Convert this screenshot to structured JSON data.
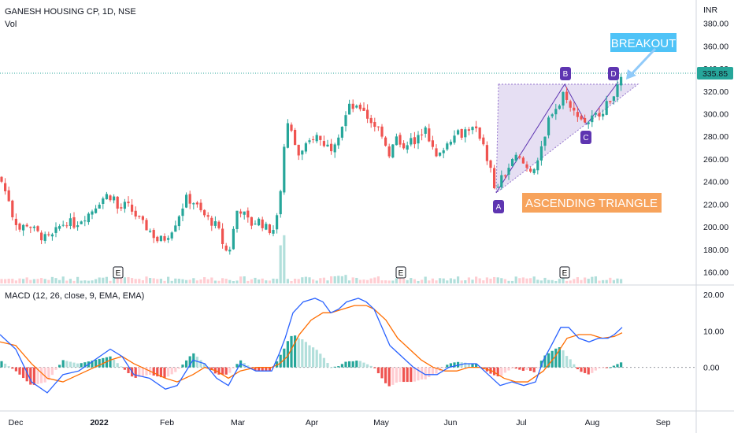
{
  "header": {
    "symbol_line": "GANESH HOUSING CP, 1D, NSE",
    "volume_label": "Vol",
    "macd_label": "MACD (12, 26, close, 9, EMA, EMA)"
  },
  "chart_data": [
    {
      "type": "candlestick",
      "currency_label": "INR",
      "y_ticks": [
        "380.00",
        "360.00",
        "340.00",
        "320.00",
        "300.00",
        "280.00",
        "260.00",
        "240.00",
        "220.00",
        "200.00",
        "180.00",
        "160.00"
      ],
      "ylim": [
        150,
        395
      ],
      "last_price": "335.85",
      "x_ticks": [
        "Dec",
        "2022",
        "Feb",
        "Mar",
        "Apr",
        "May",
        "Jun",
        "Jul",
        "Aug",
        "Sep"
      ],
      "earnings_markers": [
        "E",
        "E",
        "E"
      ],
      "price_path": [
        [
          0,
          244
        ],
        [
          6,
          232
        ],
        [
          10,
          228
        ],
        [
          16,
          210
        ],
        [
          25,
          198
        ],
        [
          35,
          203
        ],
        [
          45,
          196
        ],
        [
          55,
          190
        ],
        [
          65,
          190
        ],
        [
          75,
          200
        ],
        [
          85,
          205
        ],
        [
          95,
          202
        ],
        [
          105,
          208
        ],
        [
          115,
          213
        ],
        [
          125,
          222
        ],
        [
          135,
          228
        ],
        [
          145,
          226
        ],
        [
          150,
          214
        ],
        [
          160,
          220
        ],
        [
          170,
          212
        ],
        [
          180,
          203
        ],
        [
          190,
          197
        ],
        [
          200,
          188
        ],
        [
          210,
          190
        ],
        [
          220,
          200
        ],
        [
          230,
          215
        ],
        [
          236,
          225
        ],
        [
          246,
          222
        ],
        [
          256,
          212
        ],
        [
          266,
          206
        ],
        [
          276,
          200
        ],
        [
          284,
          183
        ],
        [
          290,
          175
        ],
        [
          296,
          196
        ],
        [
          302,
          218
        ],
        [
          308,
          213
        ],
        [
          318,
          202
        ],
        [
          328,
          206
        ],
        [
          338,
          199
        ],
        [
          346,
          196
        ],
        [
          352,
          208
        ],
        [
          356,
          232
        ],
        [
          360,
          264
        ],
        [
          366,
          293
        ],
        [
          372,
          278
        ],
        [
          380,
          262
        ],
        [
          390,
          272
        ],
        [
          400,
          282
        ],
        [
          410,
          274
        ],
        [
          420,
          270
        ],
        [
          430,
          283
        ],
        [
          440,
          300
        ],
        [
          445,
          308
        ],
        [
          452,
          303
        ],
        [
          460,
          307
        ],
        [
          468,
          295
        ],
        [
          476,
          290
        ],
        [
          484,
          285
        ],
        [
          490,
          272
        ],
        [
          496,
          262
        ],
        [
          502,
          282
        ],
        [
          508,
          270
        ],
        [
          514,
          273
        ],
        [
          520,
          278
        ],
        [
          526,
          272
        ],
        [
          534,
          282
        ],
        [
          540,
          292
        ],
        [
          548,
          270
        ],
        [
          556,
          258
        ],
        [
          562,
          270
        ],
        [
          570,
          275
        ],
        [
          578,
          286
        ],
        [
          586,
          282
        ],
        [
          594,
          288
        ],
        [
          600,
          286
        ],
        [
          608,
          282
        ],
        [
          614,
          274
        ],
        [
          618,
          262
        ],
        [
          624,
          248
        ],
        [
          628,
          230
        ],
        [
          634,
          240
        ],
        [
          640,
          245
        ],
        [
          648,
          255
        ],
        [
          656,
          262
        ],
        [
          664,
          256
        ],
        [
          672,
          250
        ],
        [
          680,
          255
        ],
        [
          686,
          264
        ],
        [
          692,
          278
        ],
        [
          698,
          300
        ],
        [
          704,
          305
        ],
        [
          710,
          307
        ],
        [
          716,
          320
        ],
        [
          720,
          315
        ],
        [
          726,
          300
        ],
        [
          732,
          302
        ],
        [
          738,
          296
        ],
        [
          744,
          292
        ],
        [
          750,
          295
        ],
        [
          756,
          298
        ],
        [
          762,
          302
        ],
        [
          768,
          305
        ],
        [
          774,
          312
        ],
        [
          780,
          320
        ],
        [
          786,
          323
        ],
        [
          791,
          336
        ]
      ],
      "annotations": {
        "points": [
          "A",
          "B",
          "C",
          "D"
        ],
        "pattern_label": "ASCENDING TRIANGLE",
        "breakout_label": "BREAKOUT",
        "colors": {
          "point_badge": "#5e35b1",
          "pattern": "#f7a35c",
          "breakout": "#4fc3f7",
          "triangle_fill": "#d1c4e9"
        }
      },
      "colors": {
        "up": "#26a69a",
        "down": "#ef5350",
        "last_price_line": "#26a69a"
      }
    },
    {
      "type": "macd",
      "y_ticks": [
        "20.00",
        "10.00",
        "0.00"
      ],
      "ylim": [
        -12,
        22
      ],
      "macd_path": [
        [
          0,
          9
        ],
        [
          20,
          5
        ],
        [
          40,
          -4
        ],
        [
          60,
          -7
        ],
        [
          80,
          -2
        ],
        [
          100,
          -1
        ],
        [
          120,
          2
        ],
        [
          140,
          5
        ],
        [
          155,
          3
        ],
        [
          170,
          -2
        ],
        [
          190,
          -3
        ],
        [
          210,
          -6
        ],
        [
          225,
          -5
        ],
        [
          245,
          2
        ],
        [
          260,
          1
        ],
        [
          275,
          -3
        ],
        [
          290,
          -5
        ],
        [
          305,
          1
        ],
        [
          325,
          -1
        ],
        [
          345,
          -1
        ],
        [
          355,
          4
        ],
        [
          362,
          8
        ],
        [
          372,
          15
        ],
        [
          385,
          18
        ],
        [
          400,
          19
        ],
        [
          410,
          18
        ],
        [
          420,
          15
        ],
        [
          430,
          16
        ],
        [
          440,
          18
        ],
        [
          455,
          19
        ],
        [
          465,
          18
        ],
        [
          475,
          16
        ],
        [
          485,
          11
        ],
        [
          495,
          6
        ],
        [
          510,
          3
        ],
        [
          525,
          0
        ],
        [
          540,
          -2
        ],
        [
          555,
          -2
        ],
        [
          570,
          0
        ],
        [
          590,
          1
        ],
        [
          605,
          1
        ],
        [
          615,
          -1
        ],
        [
          625,
          -3
        ],
        [
          635,
          -5
        ],
        [
          650,
          -4
        ],
        [
          665,
          -5
        ],
        [
          680,
          -4
        ],
        [
          690,
          2
        ],
        [
          700,
          6
        ],
        [
          712,
          11
        ],
        [
          722,
          11
        ],
        [
          735,
          8
        ],
        [
          748,
          7
        ],
        [
          760,
          8
        ],
        [
          772,
          8
        ],
        [
          780,
          9
        ],
        [
          790,
          11
        ]
      ],
      "signal_path": [
        [
          0,
          7
        ],
        [
          20,
          6
        ],
        [
          40,
          1
        ],
        [
          60,
          -3
        ],
        [
          80,
          -4
        ],
        [
          100,
          -2
        ],
        [
          120,
          0
        ],
        [
          140,
          2
        ],
        [
          155,
          3
        ],
        [
          170,
          1
        ],
        [
          190,
          -1
        ],
        [
          210,
          -3
        ],
        [
          225,
          -4
        ],
        [
          245,
          -2
        ],
        [
          260,
          0
        ],
        [
          275,
          -1
        ],
        [
          290,
          -3
        ],
        [
          305,
          -1
        ],
        [
          325,
          0
        ],
        [
          345,
          0
        ],
        [
          355,
          1
        ],
        [
          365,
          3
        ],
        [
          380,
          9
        ],
        [
          395,
          13
        ],
        [
          410,
          15
        ],
        [
          420,
          15
        ],
        [
          435,
          16
        ],
        [
          450,
          17
        ],
        [
          465,
          17
        ],
        [
          475,
          16
        ],
        [
          490,
          13
        ],
        [
          505,
          8
        ],
        [
          520,
          5
        ],
        [
          535,
          2
        ],
        [
          550,
          0
        ],
        [
          565,
          -1
        ],
        [
          580,
          -1
        ],
        [
          595,
          0
        ],
        [
          610,
          0
        ],
        [
          625,
          -1
        ],
        [
          640,
          -3
        ],
        [
          655,
          -4
        ],
        [
          670,
          -4
        ],
        [
          690,
          -1
        ],
        [
          705,
          3
        ],
        [
          720,
          8
        ],
        [
          735,
          9
        ],
        [
          750,
          9
        ],
        [
          765,
          8
        ],
        [
          780,
          8.5
        ],
        [
          790,
          9.5
        ]
      ],
      "colors": {
        "macd": "#2962ff",
        "signal": "#ff6d00",
        "hist_up": "#26a69a",
        "hist_up_light": "#b2dfdb",
        "hist_down": "#ef5350",
        "hist_down_light": "#ffcdd2"
      }
    }
  ]
}
